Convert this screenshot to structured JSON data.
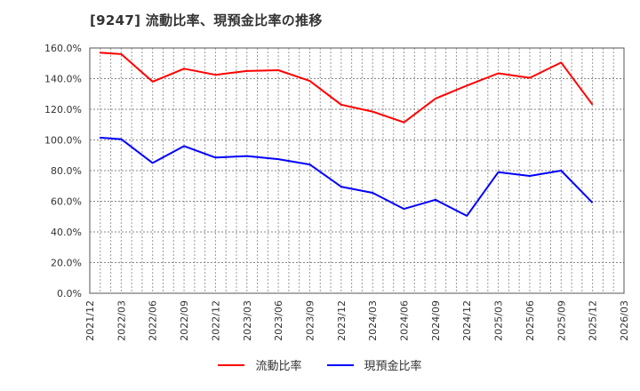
{
  "title": "[9247]  流動比率、現預金比率の推移",
  "legend": [
    {
      "label": "流動比率",
      "color": "#ff0000"
    },
    {
      "label": "現預金比率",
      "color": "#0000ff"
    }
  ],
  "chart_data": {
    "type": "line",
    "title": "[9247]  流動比率、現預金比率の推移",
    "xlabel": "",
    "ylabel": "",
    "ylim": [
      0,
      160
    ],
    "yticks": [
      "0.0%",
      "20.0%",
      "40.0%",
      "60.0%",
      "80.0%",
      "100.0%",
      "120.0%",
      "140.0%",
      "160.0%"
    ],
    "xticks": [
      "2021/12",
      "2022/03",
      "2022/06",
      "2022/09",
      "2022/12",
      "2023/03",
      "2023/06",
      "2023/09",
      "2023/12",
      "2024/03",
      "2024/06",
      "2024/09",
      "2024/12",
      "2025/03",
      "2025/06",
      "2025/09",
      "2025/12",
      "2026/03"
    ],
    "grid": true,
    "legend_position": "bottom",
    "x": [
      "2021/12",
      "2022/03",
      "2022/06",
      "2022/09",
      "2022/12",
      "2023/03",
      "2023/06",
      "2023/09",
      "2023/12",
      "2024/03",
      "2024/06",
      "2024/09",
      "2024/12",
      "2025/03",
      "2025/06",
      "2025/09",
      "2025/12"
    ],
    "series": [
      {
        "name": "流動比率",
        "color": "#ff0000",
        "values": [
          157.0,
          156.0,
          138.0,
          146.5,
          142.5,
          145.0,
          145.5,
          138.5,
          123.0,
          118.5,
          111.5,
          127.0,
          135.5,
          143.5,
          140.5,
          150.5,
          123.0
        ]
      },
      {
        "name": "現預金比率",
        "color": "#0000ff",
        "values": [
          101.5,
          100.5,
          85.0,
          96.0,
          88.5,
          89.5,
          87.5,
          84.0,
          69.5,
          65.5,
          55.0,
          61.0,
          50.5,
          79.0,
          76.5,
          80.0,
          59.0
        ]
      }
    ]
  }
}
